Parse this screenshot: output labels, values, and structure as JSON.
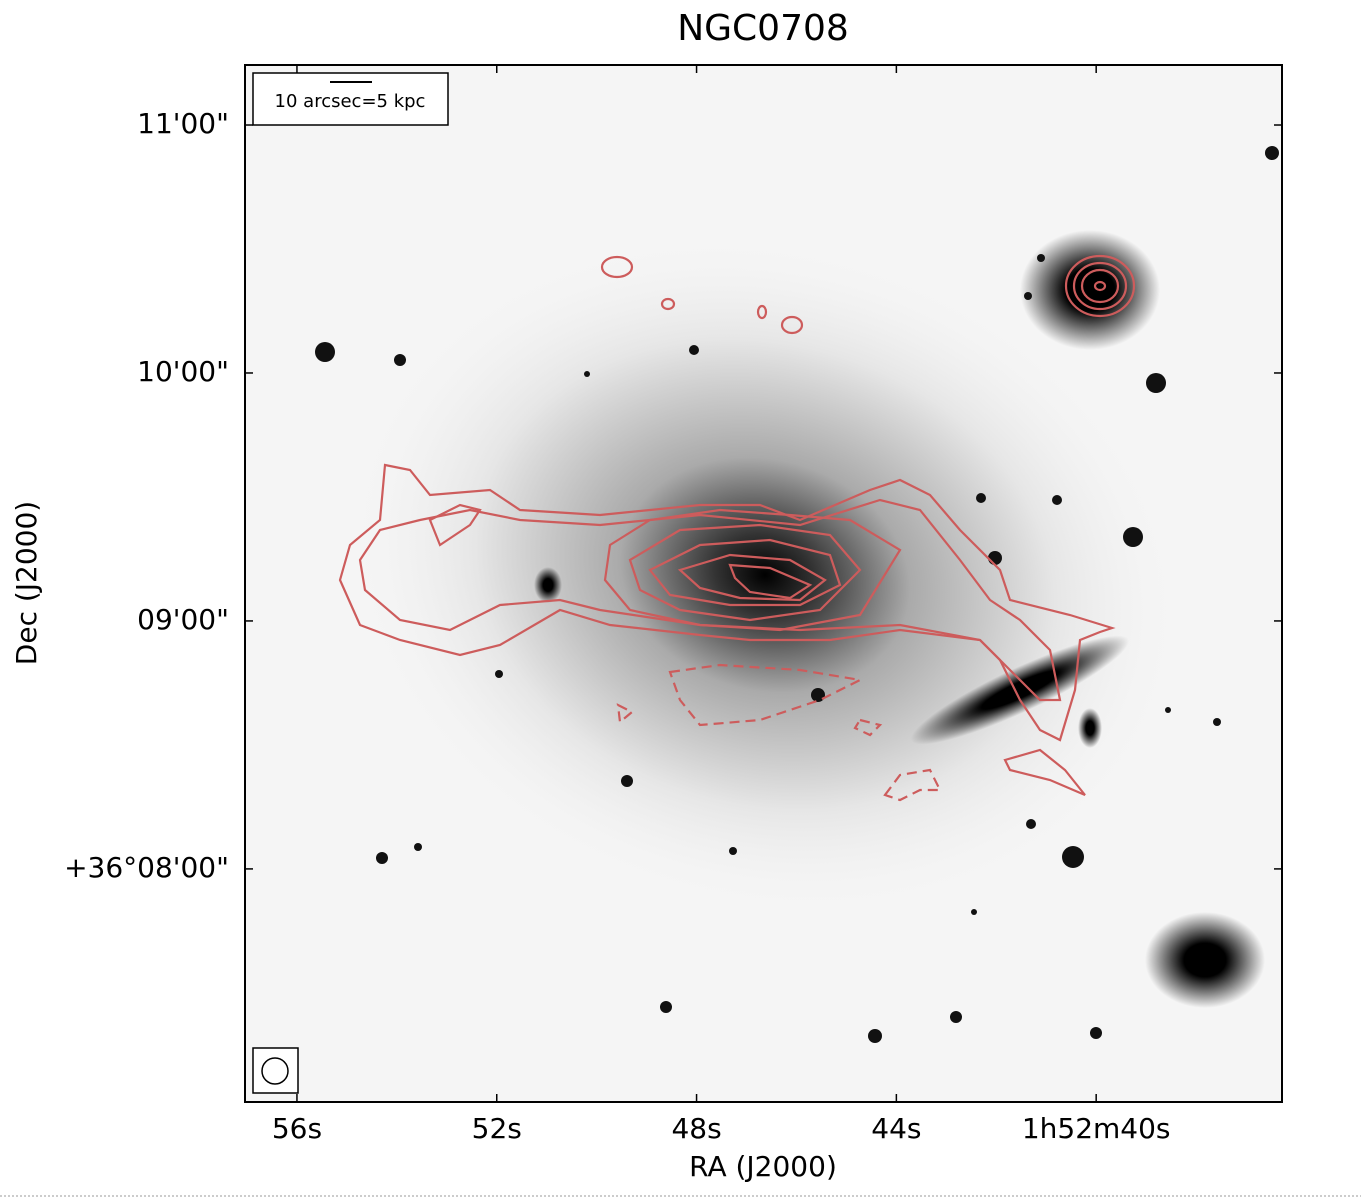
{
  "chart_data": {
    "type": "image",
    "title": "NGC0708",
    "x_label": "RA (J2000)",
    "y_label": "Dec (J2000)",
    "xlim": [
      57.04,
      36.28
    ],
    "xticks": [
      {
        "value": 56,
        "label": "56s"
      },
      {
        "value": 52,
        "label": "52s"
      },
      {
        "value": 48,
        "label": "48s"
      },
      {
        "value": 44,
        "label": "44s"
      },
      {
        "value": 40,
        "label": "1h52m40s"
      }
    ],
    "ylim": [
      7.06,
      11.242
    ],
    "yticks": [
      {
        "value": 8,
        "label": "+36°08'00\""
      },
      {
        "value": 9,
        "label": "09'00\""
      },
      {
        "value": 10,
        "label": "10'00\""
      },
      {
        "value": 11,
        "label": "11'00\""
      }
    ],
    "annotations": [
      "10 arcsec=5 kpc"
    ],
    "contour_color": "#cd5c5c"
  }
}
